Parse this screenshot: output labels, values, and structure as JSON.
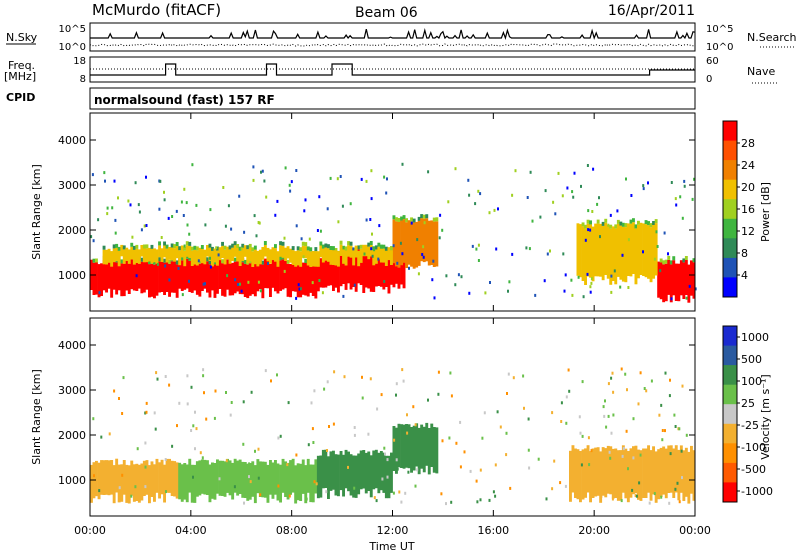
{
  "header": {
    "station": "McMurdo (fitACF)",
    "beam": "Beam 06",
    "date": "16/Apr/2011"
  },
  "status_panels": {
    "nsky_label": "N.Sky",
    "nsky_ticks": [
      "10^5",
      "10^0"
    ],
    "nsearch_label": "N.Search",
    "nsearch_ticks": [
      "10^5",
      "10^0"
    ],
    "freq_label_1": "Freq.",
    "freq_label_2": "[MHz]",
    "freq_ticks": [
      "18",
      "8"
    ],
    "nave_label": "Nave",
    "nave_ticks": [
      "60",
      "0"
    ],
    "cpid_label": "CPID",
    "program": "normalsound (fast) 157 RF"
  },
  "colors": {
    "power": [
      "#0000ff",
      "#1f53b6",
      "#2f8a57",
      "#3fb53f",
      "#a0d020",
      "#f0c000",
      "#f08000",
      "#ff5000",
      "#ff0000"
    ],
    "velocity": [
      "#ff0000",
      "#ff5a00",
      "#ff9000",
      "#f3b030",
      "#c8c8c8",
      "#6ac04a",
      "#3a9048",
      "#2a5aa0",
      "#1a2ad0"
    ]
  },
  "chart_data": [
    {
      "type": "heatmap",
      "quantity": "power",
      "xlabel": "",
      "ylabel": "Slant Range [km]",
      "xlim": [
        "00:00",
        "24:00"
      ],
      "ylim": [
        200,
        4600
      ],
      "y_ticks": [
        "1000",
        "2000",
        "3000",
        "4000"
      ],
      "colorbar_label": "Power [dB]",
      "colorbar_ticks": [
        "4",
        "8",
        "12",
        "16",
        "20",
        "24",
        "28"
      ],
      "bands": [
        {
          "t0": 0.0,
          "t1": 9.3,
          "r0": 600,
          "r1": 1300,
          "level": "28"
        },
        {
          "t0": 9.3,
          "t1": 12.5,
          "r0": 700,
          "r1": 1500,
          "level": "28"
        },
        {
          "t0": 12.0,
          "t1": 13.8,
          "r0": 1200,
          "r1": 2200,
          "level": "20"
        },
        {
          "t0": 0.5,
          "t1": 12.0,
          "r0": 1300,
          "r1": 1600,
          "level": "16"
        },
        {
          "t0": 22.5,
          "t1": 24.0,
          "r0": 500,
          "r1": 1300,
          "level": "28"
        },
        {
          "t0": 19.3,
          "t1": 22.5,
          "r0": 900,
          "r1": 2100,
          "level": "16"
        }
      ]
    },
    {
      "type": "heatmap",
      "quantity": "velocity",
      "xlabel": "Time UT",
      "ylabel": "Slant Range [km]",
      "xlim": [
        "00:00",
        "24:00"
      ],
      "ylim": [
        200,
        4600
      ],
      "x_ticks": [
        "00:00",
        "04:00",
        "08:00",
        "12:00",
        "16:00",
        "20:00",
        "00:00"
      ],
      "y_ticks": [
        "1000",
        "2000",
        "3000",
        "4000"
      ],
      "colorbar_label": "Velocity [m s⁻¹]",
      "colorbar_ticks": [
        "1000",
        "500",
        "100",
        "25",
        "-25",
        "-100",
        "-500",
        "-1000"
      ],
      "bands": [
        {
          "t0": 0.0,
          "t1": 3.5,
          "r0": 600,
          "r1": 1400,
          "level": "-100"
        },
        {
          "t0": 3.5,
          "t1": 9.0,
          "r0": 600,
          "r1": 1400,
          "level": "25"
        },
        {
          "t0": 9.0,
          "t1": 12.0,
          "r0": 700,
          "r1": 1600,
          "level": "100"
        },
        {
          "t0": 12.0,
          "t1": 13.8,
          "r0": 1200,
          "r1": 2200,
          "level": "100"
        },
        {
          "t0": 19.0,
          "t1": 24.0,
          "r0": 600,
          "r1": 1700,
          "level": "-100"
        }
      ]
    }
  ]
}
